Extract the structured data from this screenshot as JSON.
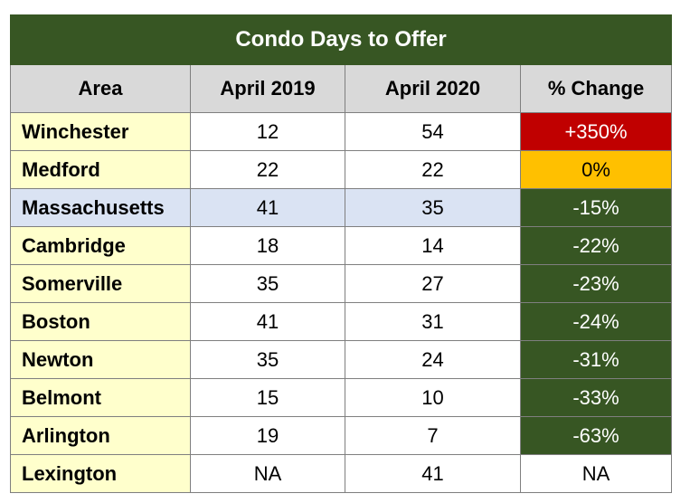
{
  "chart_data": {
    "type": "table",
    "title": "Condo Days to Offer",
    "columns": [
      "Area",
      "April 2019",
      "April 2020",
      "% Change"
    ],
    "rows": [
      {
        "area": "Winchester",
        "apr2019": "12",
        "apr2020": "54",
        "change": "+350%",
        "status": "red"
      },
      {
        "area": "Medford",
        "apr2019": "22",
        "apr2020": "22",
        "change": "0%",
        "status": "amber"
      },
      {
        "area": "Massachusetts",
        "apr2019": "41",
        "apr2020": "35",
        "change": "-15%",
        "status": "green",
        "highlight": true
      },
      {
        "area": "Cambridge",
        "apr2019": "18",
        "apr2020": "14",
        "change": "-22%",
        "status": "green"
      },
      {
        "area": "Somerville",
        "apr2019": "35",
        "apr2020": "27",
        "change": "-23%",
        "status": "green"
      },
      {
        "area": "Boston",
        "apr2019": "41",
        "apr2020": "31",
        "change": "-24%",
        "status": "green"
      },
      {
        "area": "Newton",
        "apr2019": "35",
        "apr2020": "24",
        "change": "-31%",
        "status": "green"
      },
      {
        "area": "Belmont",
        "apr2019": "15",
        "apr2020": "10",
        "change": "-33%",
        "status": "green"
      },
      {
        "area": "Arlington",
        "apr2019": "19",
        "apr2020": "7",
        "change": "-63%",
        "status": "green"
      },
      {
        "area": "Lexington",
        "apr2019": "NA",
        "apr2020": "41",
        "change": "NA",
        "status": "none"
      }
    ]
  },
  "colors": {
    "title_bg": "#375623",
    "header_bg": "#d9d9d9",
    "area_bg": "#ffffcc",
    "highlight_bg": "#dae3f3",
    "red": "#c00000",
    "amber": "#ffc000",
    "green": "#375623"
  }
}
